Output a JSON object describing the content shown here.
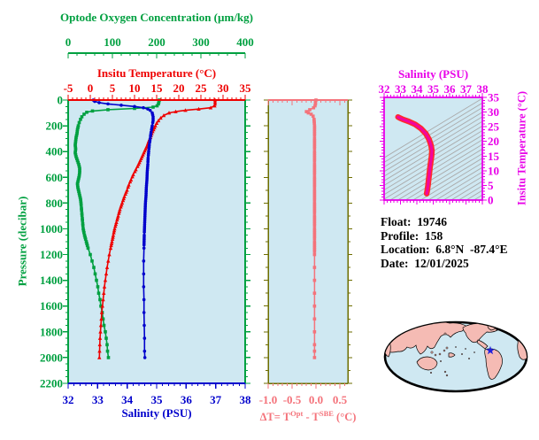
{
  "colors": {
    "green": "#00A040",
    "red": "#EE0000",
    "blue": "#0000CC",
    "magenta": "#E800E8",
    "pink_curve": "#F2059F",
    "underlay_red": "#FF2A2A",
    "salmon": "#F4737B",
    "olive": "#6E6E00",
    "panel_bg": "#CFE8F2",
    "contour": "#AAAAAA",
    "land": "#F5BBB4",
    "coast": "#000000",
    "star": "#2222DD",
    "text": "#000000"
  },
  "info": {
    "lines": [
      "Float:  19746",
      "Profile:  158",
      "Location:  6.8°N  -87.4°E",
      "Date:  12/01/2025"
    ]
  },
  "chart_data": [
    {
      "id": "main-profile",
      "type": "line",
      "axes": {
        "y": {
          "label": "Pressure (decibar)",
          "min": 0,
          "max": 2200,
          "major": 200,
          "minor": 50
        },
        "x_top_outer": {
          "label": "Optode Oxygen Concentration (µm/kg)",
          "min": 0,
          "max": 400,
          "major": 100,
          "minor": 20
        },
        "x_top": {
          "label": "Insitu Temperature (°C)",
          "min": -5,
          "max": 35,
          "major": 5,
          "minor": 1
        },
        "x_bottom": {
          "label": "Salinity (PSU)",
          "min": 32,
          "max": 38,
          "major": 1,
          "minor": 0.2
        }
      },
      "series": [
        {
          "name": "oxygen",
          "axis": "x_top_outer",
          "marker": "square",
          "color": "green",
          "points": [
            [
              0,
              206
            ],
            [
              15,
              205
            ],
            [
              30,
              204
            ],
            [
              45,
              201
            ],
            [
              55,
              192
            ],
            [
              65,
              150
            ],
            [
              75,
              90
            ],
            [
              85,
              55
            ],
            [
              95,
              42
            ],
            [
              110,
              36
            ],
            [
              130,
              31
            ],
            [
              150,
              28
            ],
            [
              175,
              25
            ],
            [
              200,
              23
            ],
            [
              230,
              21
            ],
            [
              260,
              20
            ],
            [
              290,
              18
            ],
            [
              320,
              17
            ],
            [
              350,
              16
            ],
            [
              380,
              17
            ],
            [
              410,
              16
            ],
            [
              440,
              18
            ],
            [
              470,
              21
            ],
            [
              500,
              24
            ],
            [
              530,
              26
            ],
            [
              560,
              26
            ],
            [
              590,
              25
            ],
            [
              620,
              23
            ],
            [
              650,
              21
            ],
            [
              680,
              22
            ],
            [
              710,
              24
            ],
            [
              740,
              26
            ],
            [
              770,
              28
            ],
            [
              800,
              29
            ],
            [
              840,
              30
            ],
            [
              880,
              31
            ],
            [
              920,
              32
            ],
            [
              960,
              33
            ],
            [
              1000,
              34
            ],
            [
              1050,
              37
            ],
            [
              1100,
              41
            ],
            [
              1150,
              45
            ],
            [
              1200,
              50
            ],
            [
              1250,
              54
            ],
            [
              1300,
              58
            ],
            [
              1350,
              61
            ],
            [
              1400,
              64
            ],
            [
              1450,
              67
            ],
            [
              1500,
              69
            ],
            [
              1550,
              72
            ],
            [
              1600,
              74
            ],
            [
              1650,
              77
            ],
            [
              1700,
              79
            ],
            [
              1750,
              81
            ],
            [
              1800,
              84
            ],
            [
              1850,
              86
            ],
            [
              1900,
              88
            ],
            [
              1950,
              89
            ],
            [
              2000,
              91
            ]
          ]
        },
        {
          "name": "temperature",
          "axis": "x_top",
          "marker": "triangle",
          "color": "red",
          "points": [
            [
              0,
              28.2
            ],
            [
              15,
              28.2
            ],
            [
              30,
              28.2
            ],
            [
              45,
              28.1
            ],
            [
              60,
              27.2
            ],
            [
              70,
              24.5
            ],
            [
              80,
              21.5
            ],
            [
              90,
              19.3
            ],
            [
              100,
              17.8
            ],
            [
              120,
              16.6
            ],
            [
              140,
              15.9
            ],
            [
              160,
              15.4
            ],
            [
              180,
              15.0
            ],
            [
              200,
              14.7
            ],
            [
              230,
              14.3
            ],
            [
              260,
              13.9
            ],
            [
              290,
              13.6
            ],
            [
              320,
              13.2
            ],
            [
              350,
              12.9
            ],
            [
              380,
              12.5
            ],
            [
              410,
              12.1
            ],
            [
              440,
              11.7
            ],
            [
              470,
              11.3
            ],
            [
              500,
              10.9
            ],
            [
              540,
              10.3
            ],
            [
              580,
              9.7
            ],
            [
              620,
              9.2
            ],
            [
              660,
              8.7
            ],
            [
              700,
              8.3
            ],
            [
              750,
              7.7
            ],
            [
              800,
              7.2
            ],
            [
              850,
              6.7
            ],
            [
              900,
              6.3
            ],
            [
              950,
              5.9
            ],
            [
              1000,
              5.5
            ],
            [
              1050,
              5.2
            ],
            [
              1100,
              4.9
            ],
            [
              1150,
              4.6
            ],
            [
              1200,
              4.3
            ],
            [
              1250,
              4.05
            ],
            [
              1300,
              3.8
            ],
            [
              1350,
              3.6
            ],
            [
              1400,
              3.4
            ],
            [
              1450,
              3.2
            ],
            [
              1500,
              3.05
            ],
            [
              1550,
              2.9
            ],
            [
              1600,
              2.75
            ],
            [
              1650,
              2.6
            ],
            [
              1700,
              2.5
            ],
            [
              1750,
              2.4
            ],
            [
              1800,
              2.3
            ],
            [
              1850,
              2.2
            ],
            [
              1900,
              2.15
            ],
            [
              1950,
              2.1
            ],
            [
              2000,
              2.05
            ]
          ]
        },
        {
          "name": "salinity",
          "axis": "x_bottom",
          "marker": "circle",
          "color": "blue",
          "points": [
            [
              0,
              32.85
            ],
            [
              10,
              32.9
            ],
            [
              20,
              33.05
            ],
            [
              30,
              33.35
            ],
            [
              40,
              33.8
            ],
            [
              50,
              34.25
            ],
            [
              60,
              34.55
            ],
            [
              70,
              34.7
            ],
            [
              80,
              34.78
            ],
            [
              100,
              34.85
            ],
            [
              130,
              34.88
            ],
            [
              160,
              34.88
            ],
            [
              200,
              34.85
            ],
            [
              250,
              34.81
            ],
            [
              300,
              34.78
            ],
            [
              350,
              34.75
            ],
            [
              400,
              34.73
            ],
            [
              450,
              34.71
            ],
            [
              500,
              34.7
            ],
            [
              560,
              34.68
            ],
            [
              620,
              34.67
            ],
            [
              680,
              34.65
            ],
            [
              740,
              34.64
            ],
            [
              800,
              34.62
            ],
            [
              860,
              34.61
            ],
            [
              920,
              34.6
            ],
            [
              980,
              34.59
            ],
            [
              1050,
              34.58
            ],
            [
              1150,
              34.57
            ],
            [
              1250,
              34.56
            ],
            [
              1350,
              34.56
            ],
            [
              1450,
              34.56
            ],
            [
              1550,
              34.57
            ],
            [
              1650,
              34.57
            ],
            [
              1750,
              34.58
            ],
            [
              1850,
              34.59
            ],
            [
              1950,
              34.59
            ],
            [
              2000,
              34.6
            ]
          ]
        }
      ]
    },
    {
      "id": "delta-t",
      "type": "line",
      "xlabel_parts": [
        "ΔT= T",
        "Opt",
        " - T",
        "SBE",
        " (°C)"
      ],
      "axes": {
        "x": {
          "min": -1.0,
          "max": 0.6667,
          "major": 0.5,
          "minor": 0.1,
          "tick_labels": [
            "-1.0",
            "-0.5",
            "0.0",
            "0.5"
          ]
        },
        "y": {
          "min": 0,
          "max": 2200,
          "major": 200,
          "minor": 100
        }
      },
      "series": [
        {
          "name": "delta-t",
          "marker": "square",
          "color": "salmon",
          "points": [
            [
              0,
              0.0
            ],
            [
              15,
              -0.01
            ],
            [
              30,
              -0.01
            ],
            [
              45,
              -0.02
            ],
            [
              60,
              -0.05
            ],
            [
              75,
              -0.13
            ],
            [
              90,
              -0.2
            ],
            [
              100,
              -0.16
            ],
            [
              110,
              -0.1
            ],
            [
              125,
              -0.06
            ],
            [
              150,
              -0.04
            ],
            [
              200,
              -0.03
            ],
            [
              300,
              -0.03
            ],
            [
              400,
              -0.03
            ],
            [
              500,
              -0.03
            ],
            [
              600,
              -0.03
            ],
            [
              700,
              -0.03
            ],
            [
              800,
              -0.03
            ],
            [
              900,
              -0.03
            ],
            [
              1000,
              -0.03
            ],
            [
              1100,
              -0.03
            ],
            [
              1200,
              -0.03
            ],
            [
              1300,
              -0.03
            ],
            [
              1400,
              -0.03
            ],
            [
              1500,
              -0.03
            ],
            [
              1600,
              -0.03
            ],
            [
              1700,
              -0.03
            ],
            [
              1800,
              -0.03
            ],
            [
              1900,
              -0.03
            ],
            [
              1950,
              -0.03
            ],
            [
              2000,
              -0.03
            ]
          ]
        }
      ]
    },
    {
      "id": "ts-diagram",
      "type": "line",
      "xlabel": "Salinity (PSU)",
      "ylabel": "Insitu Temperature (°C)",
      "axes": {
        "x": {
          "min": 32,
          "max": 38,
          "major": 1,
          "minor": 0.2
        },
        "y": {
          "min": 0,
          "max": 35,
          "major": 5,
          "minor": 1
        }
      },
      "contours": {
        "style": "isopycnal-lines",
        "color": "contour"
      },
      "series": [
        {
          "name": "t-s-curve",
          "color": "pink_curve",
          "points": [
            [
              32.85,
              28.3
            ],
            [
              32.95,
              28.0
            ],
            [
              33.15,
              27.5
            ],
            [
              33.5,
              26.8
            ],
            [
              33.9,
              25.8
            ],
            [
              34.25,
              24.4
            ],
            [
              34.55,
              22.6
            ],
            [
              34.75,
              20.6
            ],
            [
              34.87,
              18.6
            ],
            [
              34.92,
              16.8
            ],
            [
              34.9,
              15.0
            ],
            [
              34.85,
              13.0
            ],
            [
              34.8,
              11.0
            ],
            [
              34.76,
              9.0
            ],
            [
              34.72,
              7.0
            ],
            [
              34.68,
              5.0
            ],
            [
              34.64,
              3.4
            ],
            [
              34.6,
              2.2
            ]
          ]
        }
      ]
    }
  ],
  "map": {
    "name": "world-map",
    "projection": "global-ellipse",
    "marker": "blue-star"
  }
}
